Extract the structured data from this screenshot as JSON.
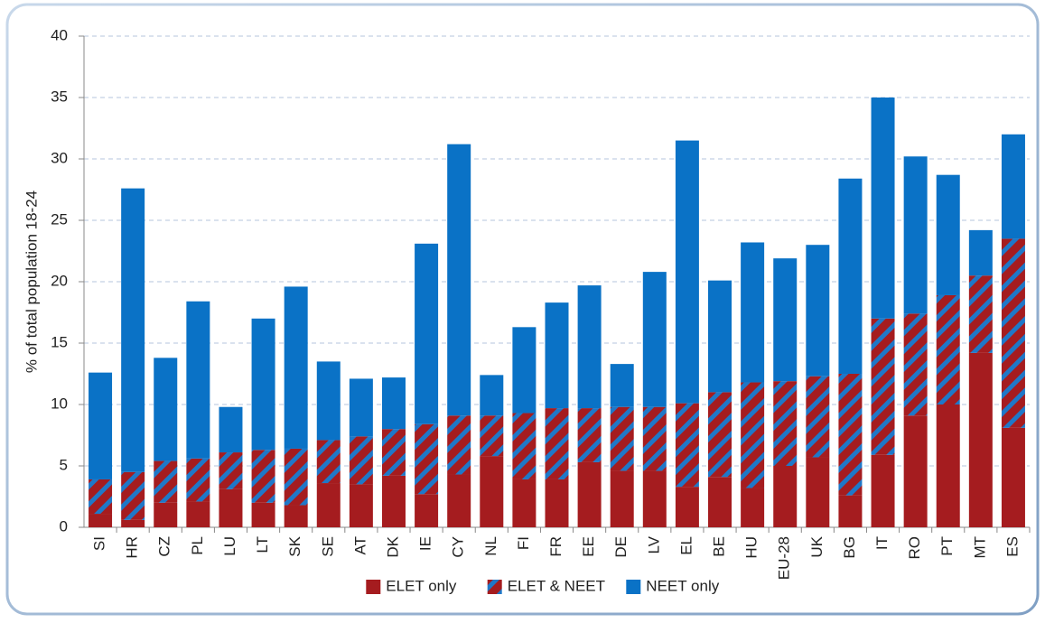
{
  "chart_data": {
    "type": "stacked_bar",
    "y_label": "% of total population 18-24",
    "categories": [
      "SI",
      "HR",
      "CZ",
      "PL",
      "LU",
      "LT",
      "SK",
      "SE",
      "AT",
      "DK",
      "IE",
      "CY",
      "NL",
      "FI",
      "FR",
      "EE",
      "DE",
      "LV",
      "EL",
      "BE",
      "HU",
      "EU-28",
      "UK",
      "BG",
      "IT",
      "RO",
      "PT",
      "MT",
      "ES"
    ],
    "series": [
      {
        "name": "ELET only",
        "color": "#a51c1f",
        "values": [
          1.1,
          0.6,
          2.0,
          2.1,
          3.1,
          2.0,
          1.8,
          3.6,
          3.5,
          4.2,
          2.7,
          4.3,
          5.8,
          3.9,
          3.9,
          5.3,
          4.6,
          4.6,
          3.3,
          4.1,
          3.2,
          5.0,
          5.7,
          2.6,
          5.9,
          9.1,
          10.0,
          14.2,
          8.1
        ]
      },
      {
        "name": "ELET & NEET",
        "color": "#a51c1f",
        "hatch_color": "#1f78c8",
        "values": [
          2.8,
          3.9,
          3.4,
          3.5,
          3.0,
          4.3,
          4.6,
          3.5,
          3.9,
          3.8,
          5.7,
          4.8,
          3.3,
          5.4,
          5.8,
          4.4,
          5.2,
          5.2,
          6.8,
          6.9,
          8.6,
          6.9,
          6.6,
          9.9,
          11.1,
          8.3,
          8.9,
          6.3,
          15.4
        ]
      },
      {
        "name": "NEET only",
        "color": "#0a72c6",
        "values": [
          8.7,
          23.1,
          8.4,
          12.8,
          3.7,
          10.7,
          13.2,
          6.4,
          4.7,
          4.2,
          14.7,
          22.1,
          3.3,
          7.0,
          8.6,
          10.0,
          3.5,
          11.0,
          21.4,
          9.1,
          11.4,
          10.0,
          10.7,
          15.9,
          18.0,
          12.8,
          9.8,
          3.7,
          8.5
        ]
      }
    ],
    "ylim": [
      0,
      40
    ],
    "yticks": [
      0,
      5,
      10,
      15,
      20,
      25,
      30,
      35,
      40
    ],
    "grid": true,
    "legend": "bottom"
  }
}
